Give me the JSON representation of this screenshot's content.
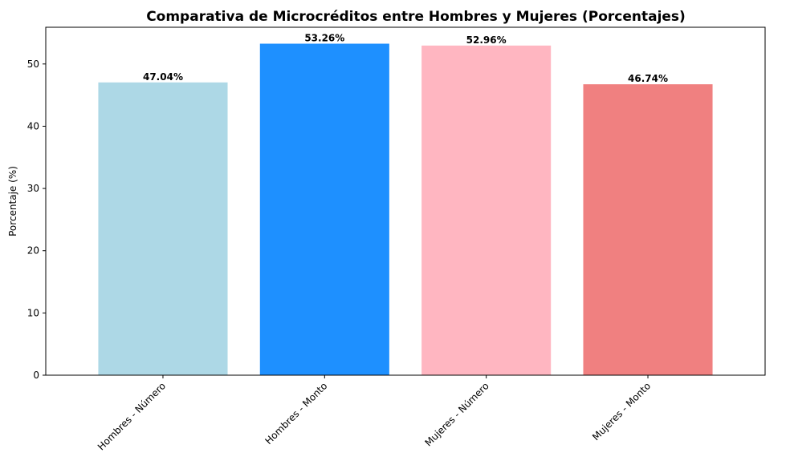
{
  "chart_data": {
    "type": "bar",
    "title": "Comparativa de Microcréditos entre Hombres y Mujeres (Porcentajes)",
    "xlabel": "",
    "ylabel": "Porcentaje (%)",
    "categories": [
      "Hombres - Número",
      "Hombres - Monto",
      "Mujeres - Número",
      "Mujeres - Monto"
    ],
    "values": [
      47.04,
      53.26,
      52.96,
      46.74
    ],
    "value_labels": [
      "47.04%",
      "53.26%",
      "52.96%",
      "46.74%"
    ],
    "colors": [
      "#add8e6",
      "#1e90ff",
      "#ffb6c1",
      "#f08080"
    ],
    "ylim": [
      0,
      55.9
    ],
    "yticks": [
      0,
      10,
      20,
      30,
      40,
      50
    ],
    "grid": false,
    "legend": "none"
  }
}
